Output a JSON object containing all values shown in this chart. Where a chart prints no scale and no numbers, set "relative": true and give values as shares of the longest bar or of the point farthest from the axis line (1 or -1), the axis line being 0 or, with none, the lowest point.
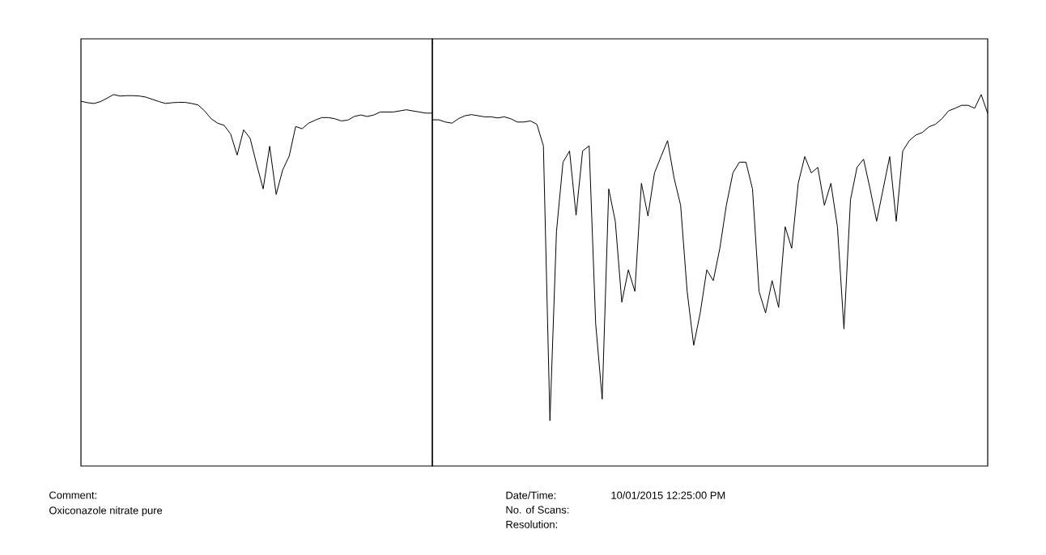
{
  "chart_data": [
    {
      "type": "line",
      "relative": true,
      "color": "#000000",
      "categories": [
        null,
        null,
        null,
        null,
        null,
        null,
        null,
        null,
        null,
        null,
        null,
        null,
        null,
        null,
        null,
        null,
        null,
        null,
        null,
        null,
        null,
        null,
        null,
        null,
        null,
        null,
        null,
        null,
        null,
        null,
        null,
        null,
        null,
        null,
        null,
        null,
        null,
        null,
        null,
        null,
        null,
        null,
        null,
        null,
        null,
        null,
        null,
        null,
        null,
        null,
        null,
        null,
        null,
        null,
        null
      ],
      "values": [
        0.982,
        0.978,
        0.976,
        0.981,
        0.99,
        1.0,
        0.996,
        0.997,
        0.997,
        0.996,
        0.993,
        0.987,
        0.981,
        0.976,
        0.978,
        0.979,
        0.979,
        0.976,
        0.972,
        0.956,
        0.935,
        0.923,
        0.917,
        0.894,
        0.837,
        0.905,
        0.882,
        0.812,
        0.746,
        0.861,
        0.731,
        0.797,
        0.834,
        0.914,
        0.908,
        0.923,
        0.931,
        0.938,
        0.938,
        0.935,
        0.929,
        0.931,
        0.941,
        0.945,
        0.941,
        0.945,
        0.953,
        0.953,
        0.953,
        0.956,
        0.959,
        0.956,
        0.953,
        0.95,
        0.95
      ],
      "annotations": [
        "Comment:",
        "Oxiconazole nitrate pure"
      ]
    },
    {
      "type": "line",
      "relative": true,
      "color": "#000000",
      "categories": [
        null,
        null,
        null,
        null,
        null,
        null,
        null,
        null,
        null,
        null,
        null,
        null,
        null,
        null,
        null,
        null,
        null,
        null,
        null,
        null,
        null,
        null,
        null,
        null,
        null,
        null,
        null,
        null,
        null,
        null,
        null,
        null,
        null,
        null,
        null,
        null,
        null,
        null,
        null,
        null,
        null,
        null,
        null,
        null,
        null,
        null,
        null,
        null,
        null,
        null,
        null,
        null,
        null,
        null,
        null,
        null,
        null,
        null,
        null,
        null,
        null,
        null,
        null,
        null,
        null,
        null,
        null,
        null,
        null,
        null,
        null,
        null,
        null,
        null,
        null,
        null,
        null,
        null,
        null,
        null,
        null,
        null,
        null,
        null,
        null,
        null
      ],
      "values": [
        0.932,
        0.932,
        0.926,
        0.923,
        0.935,
        0.943,
        0.946,
        0.943,
        0.94,
        0.94,
        0.937,
        0.94,
        0.935,
        0.926,
        0.926,
        0.929,
        0.92,
        0.862,
        0.122,
        0.631,
        0.818,
        0.848,
        0.675,
        0.848,
        0.862,
        0.383,
        0.18,
        0.746,
        0.659,
        0.441,
        0.528,
        0.47,
        0.761,
        0.673,
        0.789,
        0.833,
        0.876,
        0.775,
        0.702,
        0.47,
        0.325,
        0.412,
        0.528,
        0.499,
        0.586,
        0.702,
        0.789,
        0.818,
        0.818,
        0.746,
        0.47,
        0.412,
        0.499,
        0.427,
        0.644,
        0.586,
        0.761,
        0.833,
        0.789,
        0.804,
        0.702,
        0.761,
        0.644,
        0.369,
        0.717,
        0.804,
        0.826,
        0.746,
        0.659,
        0.746,
        0.833,
        0.659,
        0.848,
        0.876,
        0.891,
        0.898,
        0.913,
        0.92,
        0.935,
        0.956,
        0.963,
        0.971,
        0.971,
        0.963,
        1.0,
        0.949
      ],
      "annotations": [
        "Date/Time:",
        "10/01/2015 12:25:00 PM",
        "No. of Scans:",
        "Resolution:"
      ]
    }
  ]
}
